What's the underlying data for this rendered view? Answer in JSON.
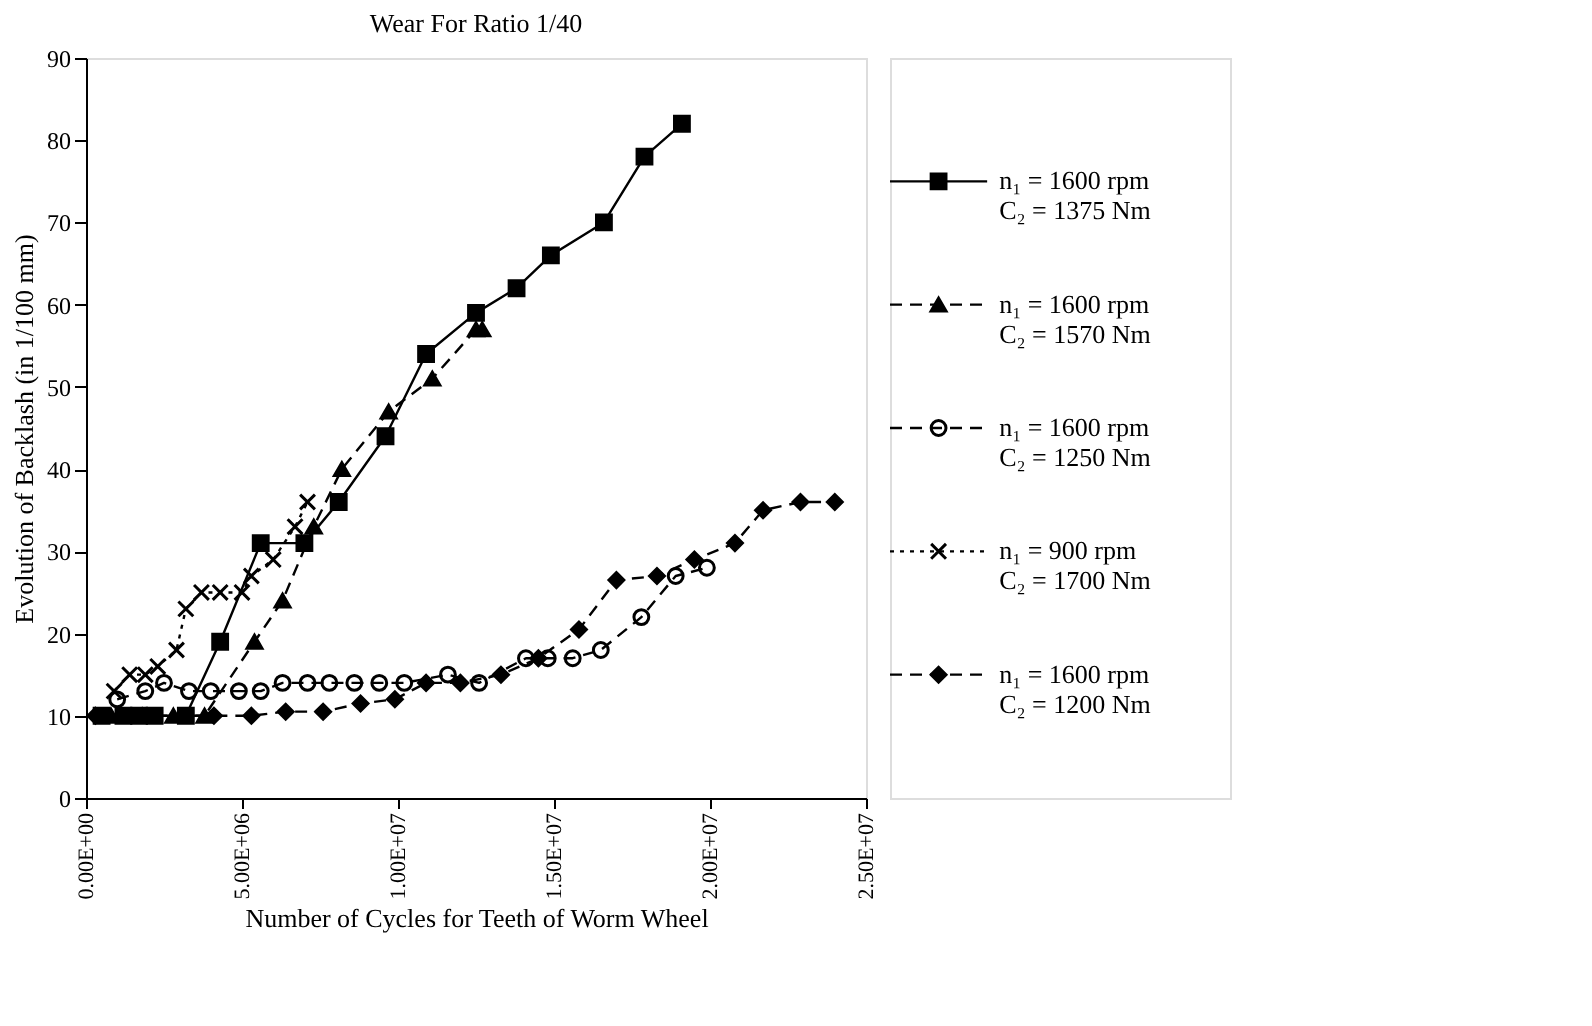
{
  "chart_data": {
    "type": "line",
    "title": "Wear For Ratio 1/40",
    "xlabel": "Number of Cycles for Teeth of Worm Wheel",
    "ylabel": "Evolution of Backlash (in 1/100 mm)",
    "xlim": [
      0,
      25000000
    ],
    "xticks": [
      {
        "value": 0,
        "label": "0.00E+00"
      },
      {
        "value": 5000000,
        "label": "5.00E+06"
      },
      {
        "value": 10000000,
        "label": "1.00E+07"
      },
      {
        "value": 15000000,
        "label": "1.50E+07"
      },
      {
        "value": 20000000,
        "label": "2.00E+07"
      },
      {
        "value": 25000000,
        "label": "2.50E+07"
      }
    ],
    "ylim": [
      0,
      90
    ],
    "yticks": [
      0,
      10,
      20,
      30,
      40,
      50,
      60,
      70,
      80,
      90
    ],
    "grid": false,
    "legend": "right",
    "series": [
      {
        "name": "n₁ = 1600 rpm\nC₂ = 1375 Nm",
        "color": "#000000",
        "marker": "square",
        "line_style": "solid",
        "x": [
          500000,
          1200000,
          1700000,
          2200000,
          3200000,
          4300000,
          5600000,
          7000000,
          8100000,
          9600000,
          10900000,
          12500000,
          13800000,
          14900000,
          16600000,
          17900000,
          19100000
        ],
        "values": [
          10,
          10,
          10,
          10,
          10,
          19,
          31,
          31,
          36,
          44,
          54,
          59,
          62,
          66,
          70,
          78,
          82
        ]
      },
      {
        "name": "n₁ = 1600 rpm\nC₂ = 1570 Nm",
        "color": "#000000",
        "marker": "triangle",
        "line_style": "dashed",
        "x": [
          800000,
          1800000,
          2800000,
          3800000,
          5400000,
          6300000,
          7300000,
          8200000,
          9700000,
          11100000,
          12500000,
          12700000
        ],
        "values": [
          10,
          10,
          10,
          10,
          19,
          24,
          33,
          40,
          47,
          51,
          57,
          57
        ]
      },
      {
        "name": "n₁ = 1600 rpm\nC₂ = 1250 Nm",
        "color": "#000000",
        "marker": "circle",
        "line_style": "dashed",
        "x": [
          1000000,
          1900000,
          2500000,
          3300000,
          4000000,
          4900000,
          5600000,
          6300000,
          7100000,
          7800000,
          8600000,
          9400000,
          10200000,
          11600000,
          12600000,
          14100000,
          14800000,
          15600000,
          16500000,
          17800000,
          18900000,
          19900000
        ],
        "values": [
          12,
          13,
          14,
          13,
          13,
          13,
          13,
          14,
          14,
          14,
          14,
          14,
          14,
          15,
          14,
          17,
          17,
          17,
          18,
          22,
          27,
          28
        ]
      },
      {
        "name": "n₁ = 900 rpm\nC₂ = 1700 Nm",
        "color": "#000000",
        "marker": "cross",
        "line_style": "dotted",
        "x": [
          900000,
          1400000,
          1900000,
          2300000,
          2900000,
          3200000,
          3700000,
          4300000,
          5000000,
          5300000,
          6000000,
          6700000,
          7100000
        ],
        "values": [
          13,
          15,
          15,
          16,
          18,
          23,
          25,
          25,
          25,
          27,
          29,
          33,
          36
        ]
      },
      {
        "name": "n₁ = 1600 rpm\nC₂ = 1200 Nm",
        "color": "#000000",
        "marker": "diamond",
        "line_style": "dashed",
        "x": [
          300000,
          4100000,
          5300000,
          6400000,
          7600000,
          8800000,
          9900000,
          10900000,
          12000000,
          13300000,
          14500000,
          15800000,
          17000000,
          18300000,
          19500000,
          20800000,
          21700000,
          22900000,
          24000000
        ],
        "values": [
          10,
          10,
          10,
          10.5,
          10.5,
          11.5,
          12,
          14,
          14,
          15,
          17,
          20.5,
          26.5,
          27,
          29,
          31,
          35,
          36,
          36
        ]
      }
    ]
  }
}
